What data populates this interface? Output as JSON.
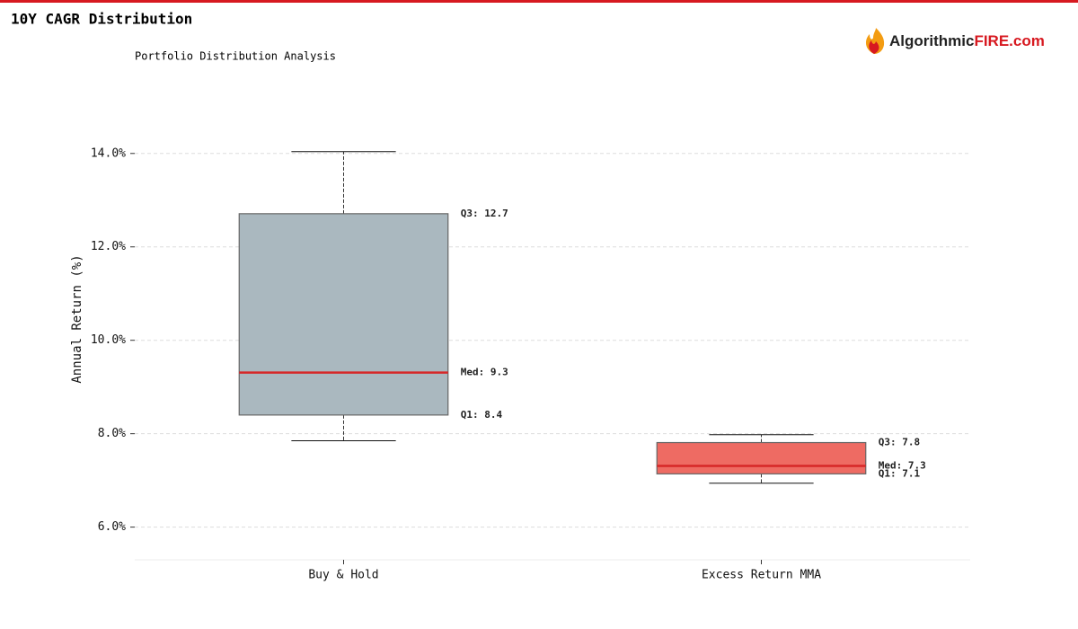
{
  "chart_data": {
    "type": "box",
    "title": "10Y CAGR Distribution",
    "subtitle": "Portfolio Distribution Analysis",
    "brand": {
      "main": "Algorithmic",
      "accent": "FIRE.com"
    },
    "y_label": "Annual Return (%)",
    "categories": [
      "Buy & Hold",
      "Excess Return MMA"
    ],
    "series": [
      {
        "color": "#aab8bf",
        "median_color": "#d62728",
        "whisker_low": 7.85,
        "q1": 8.4,
        "median": 9.31,
        "q3": 12.71,
        "whisker_high": 14.04,
        "value_labels": {
          "q1": "Q1: 8.4",
          "median": "Med: 9.3",
          "q3": "Q3: 12.7"
        }
      },
      {
        "color": "#ee6b63",
        "median_color": "#d62728",
        "whisker_low": 6.94,
        "q1": 7.14,
        "median": 7.31,
        "q3": 7.81,
        "whisker_high": 7.98,
        "value_labels": {
          "q1": "Q1: 7.1",
          "median": "Med: 7.3",
          "q3": "Q3: 7.8"
        }
      }
    ],
    "ylim": [
      5.3,
      14.9
    ],
    "yticks": [
      {
        "value": 6,
        "label": "6.0%"
      },
      {
        "value": 8,
        "label": "8.0%"
      },
      {
        "value": 10,
        "label": "10.0%"
      },
      {
        "value": 12,
        "label": "12.0%"
      },
      {
        "value": 14,
        "label": "14.0%"
      }
    ],
    "grid": true
  }
}
